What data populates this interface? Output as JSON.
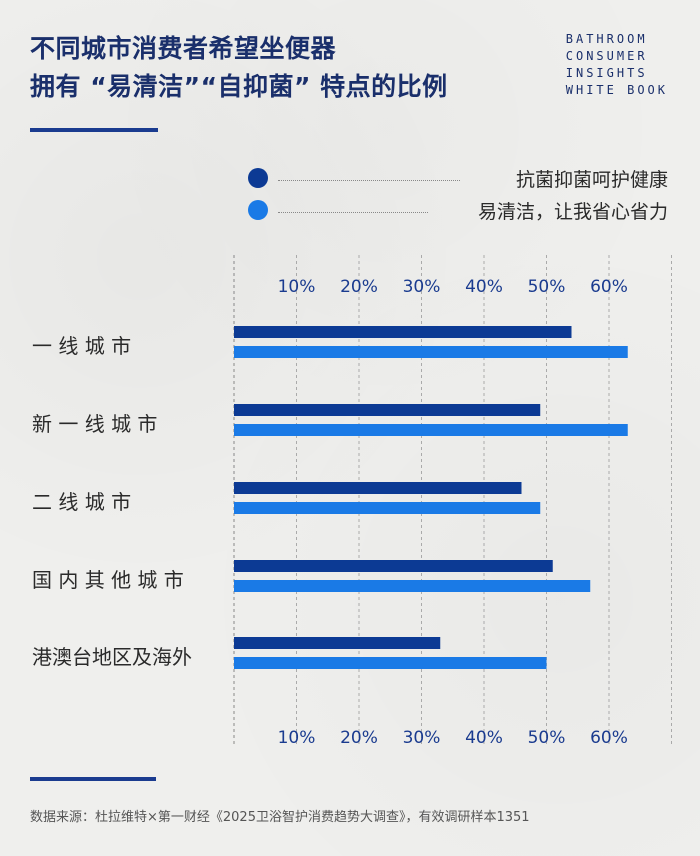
{
  "header": {
    "title_line1": "不同城市消费者希望坐便器",
    "title_line2": "拥有 “易清洁”“自抑菌” 特点的比例",
    "brand_lines": [
      "BATHROOM",
      "CONSUMER",
      "INSIGHTS",
      "WHITE BOOK"
    ]
  },
  "colors": {
    "series_dark": "#0c3a94",
    "series_light": "#1a7ae6",
    "accent_rule": "#1a3b8f"
  },
  "chart_data": {
    "type": "bar",
    "orientation": "horizontal",
    "categories": [
      "一 线 城 市",
      "新 一 线 城 市",
      "二 线 城 市",
      "国 内 其 他 城 市",
      "港澳台地区及海外"
    ],
    "series": [
      {
        "name": "抗菌抑菌呵护健康",
        "values": [
          54,
          49,
          46,
          51,
          33
        ]
      },
      {
        "name": "易清洁，让我省心省力",
        "values": [
          63,
          63,
          49,
          57,
          50
        ]
      }
    ],
    "xlim": [
      0,
      70
    ],
    "xticks": [
      10,
      20,
      30,
      40,
      50,
      60
    ],
    "tick_labels": [
      "10%",
      "20%",
      "30%",
      "40%",
      "50%",
      "60%"
    ],
    "grid": true,
    "legend_position": "top"
  },
  "footer": {
    "source": "数据来源：杜拉维特×第一财经《2025卫浴智护消费趋势大调查》，有效调研样本1351"
  }
}
